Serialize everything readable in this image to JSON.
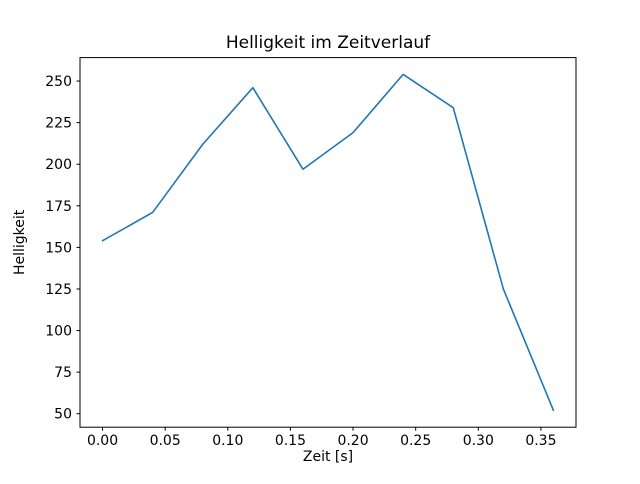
{
  "chart_data": {
    "type": "line",
    "title": "Helligkeit im Zeitverlauf",
    "xlabel": "Zeit [s]",
    "ylabel": "Helligkeit",
    "x": [
      0.0,
      0.04,
      0.08,
      0.12,
      0.16,
      0.2,
      0.24,
      0.28,
      0.32,
      0.36
    ],
    "y": [
      154,
      171,
      212,
      246,
      197,
      219,
      254,
      234,
      125,
      52
    ],
    "xlim": [
      -0.018,
      0.378
    ],
    "ylim": [
      41.9,
      264.1
    ],
    "xticks": [
      0.0,
      0.05,
      0.1,
      0.15,
      0.2,
      0.25,
      0.3,
      0.35
    ],
    "xtick_labels": [
      "0.00",
      "0.05",
      "0.10",
      "0.15",
      "0.20",
      "0.25",
      "0.30",
      "0.35"
    ],
    "yticks": [
      50,
      75,
      100,
      125,
      150,
      175,
      200,
      225,
      250
    ],
    "ytick_labels": [
      "50",
      "75",
      "100",
      "125",
      "150",
      "175",
      "200",
      "225",
      "250"
    ],
    "line_color": "#1f77b4",
    "axis_color": "#000000",
    "background_color": "#ffffff",
    "grid": false,
    "legend_position": "none"
  }
}
